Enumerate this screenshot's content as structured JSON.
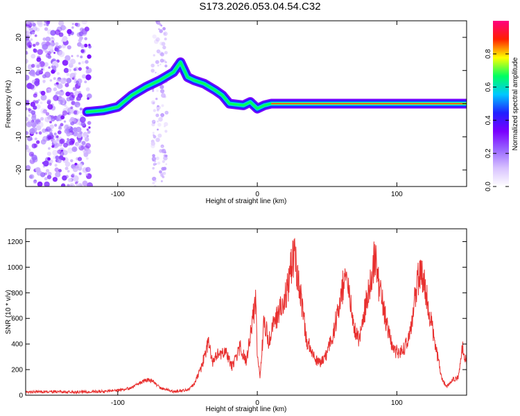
{
  "title": "S173.2026.053.04.54.C32",
  "chart_data": [
    {
      "type": "heatmap",
      "xlabel": "Height of straight line (km)",
      "ylabel": "Frequency (Hz)",
      "xlim": [
        -166,
        150
      ],
      "ylim": [
        -25,
        25
      ],
      "xticks": [
        -100,
        0,
        100
      ],
      "yticks": [
        -20,
        -10,
        0,
        10,
        20
      ],
      "ridge": [
        {
          "x": -122,
          "y": -2.5
        },
        {
          "x": -110,
          "y": -2
        },
        {
          "x": -100,
          "y": -1
        },
        {
          "x": -90,
          "y": 2.5
        },
        {
          "x": -80,
          "y": 5
        },
        {
          "x": -70,
          "y": 7
        },
        {
          "x": -60,
          "y": 9.5
        },
        {
          "x": -55,
          "y": 12.5
        },
        {
          "x": -50,
          "y": 8
        },
        {
          "x": -45,
          "y": 7
        },
        {
          "x": -38,
          "y": 6
        },
        {
          "x": -30,
          "y": 4
        },
        {
          "x": -25,
          "y": 2.5
        },
        {
          "x": -20,
          "y": 0
        },
        {
          "x": -10,
          "y": -0.5
        },
        {
          "x": -5,
          "y": 0.5
        },
        {
          "x": 0,
          "y": -1.5
        },
        {
          "x": 5,
          "y": -0.5
        },
        {
          "x": 10,
          "y": 0
        },
        {
          "x": 150,
          "y": 0
        }
      ],
      "colorbar": {
        "label": "Normalized spectral amplitude",
        "ticks": [
          0.0,
          0.2,
          0.4,
          0.6,
          0.8
        ],
        "stops": [
          "#ffffff",
          "#d8c2ff",
          "#9966ff",
          "#7a00ff",
          "#2020ff",
          "#00c8ff",
          "#00ff60",
          "#ffff00",
          "#ff2000",
          "#ff0080"
        ]
      }
    },
    {
      "type": "line",
      "xlabel": "Height of straight line (km)",
      "ylabel": "SNR (10 * v/v)",
      "xlim": [
        -166,
        150
      ],
      "ylim": [
        0,
        1300
      ],
      "xticks": [
        -100,
        0,
        100
      ],
      "yticks": [
        0,
        200,
        400,
        600,
        800,
        1000,
        1200
      ],
      "color": "#e8302f",
      "series": [
        {
          "name": "SNR",
          "points": [
            [
              -166,
              25
            ],
            [
              -150,
              28
            ],
            [
              -130,
              25
            ],
            [
              -110,
              30
            ],
            [
              -100,
              35
            ],
            [
              -90,
              60
            ],
            [
              -80,
              120
            ],
            [
              -75,
              110
            ],
            [
              -70,
              60
            ],
            [
              -60,
              30
            ],
            [
              -50,
              40
            ],
            [
              -45,
              90
            ],
            [
              -40,
              220
            ],
            [
              -35,
              420
            ],
            [
              -32,
              250
            ],
            [
              -28,
              320
            ],
            [
              -22,
              330
            ],
            [
              -18,
              220
            ],
            [
              -12,
              380
            ],
            [
              -8,
              260
            ],
            [
              -4,
              550
            ],
            [
              -1,
              750
            ],
            [
              0,
              300
            ],
            [
              2,
              150
            ],
            [
              5,
              600
            ],
            [
              8,
              420
            ],
            [
              12,
              560
            ],
            [
              18,
              700
            ],
            [
              22,
              850
            ],
            [
              26,
              1100
            ],
            [
              28,
              1000
            ],
            [
              32,
              720
            ],
            [
              35,
              450
            ],
            [
              40,
              300
            ],
            [
              45,
              250
            ],
            [
              50,
              330
            ],
            [
              55,
              500
            ],
            [
              60,
              800
            ],
            [
              64,
              970
            ],
            [
              67,
              750
            ],
            [
              70,
              500
            ],
            [
              73,
              420
            ],
            [
              76,
              600
            ],
            [
              80,
              850
            ],
            [
              84,
              1080
            ],
            [
              87,
              870
            ],
            [
              90,
              700
            ],
            [
              94,
              500
            ],
            [
              98,
              350
            ],
            [
              102,
              330
            ],
            [
              106,
              380
            ],
            [
              110,
              520
            ],
            [
              113,
              760
            ],
            [
              117,
              1000
            ],
            [
              120,
              850
            ],
            [
              123,
              650
            ],
            [
              126,
              500
            ],
            [
              130,
              250
            ],
            [
              133,
              110
            ],
            [
              136,
              70
            ],
            [
              140,
              120
            ],
            [
              144,
              140
            ],
            [
              147,
              380
            ],
            [
              150,
              250
            ]
          ]
        }
      ]
    }
  ]
}
